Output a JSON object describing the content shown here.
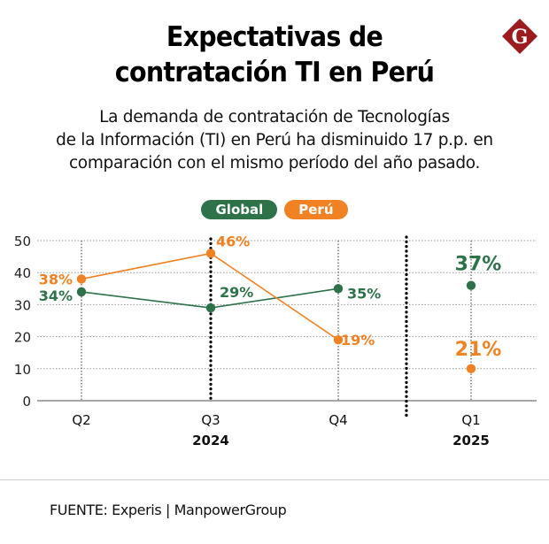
{
  "header": {
    "title_line1": "Expectativas de",
    "title_line2": "contratación TI en Perú",
    "logo_letter": "G",
    "logo_color": "#9b1b1f"
  },
  "subtitle": {
    "line1": "La demanda de contratación de Tecnologías",
    "line2": "de la Información (TI) en Perú ha disminuido 17 p.p. en",
    "line3": "comparación con el mismo período del año pasado."
  },
  "footer": {
    "source": "FUENTE: Experis | ManpowerGroup"
  },
  "chart_data": {
    "type": "line",
    "title": "Expectativas de contratación TI en Perú",
    "xlabel": "",
    "ylabel": "",
    "ylim": [
      0,
      50
    ],
    "yticks": [
      0,
      10,
      20,
      30,
      40,
      50
    ],
    "grid": true,
    "legend_position": "top-center",
    "categories": [
      "Q2",
      "Q3",
      "Q4",
      "Q1"
    ],
    "year_labels": [
      {
        "label": "2024",
        "under": "Q3"
      },
      {
        "label": "2025",
        "under": "Q1"
      }
    ],
    "year_separator_after": "Q4",
    "series": [
      {
        "name": "Global",
        "color": "#2e7249",
        "values": [
          34,
          29,
          35,
          37
        ],
        "labels": [
          "34%",
          "29%",
          "35%",
          "37%"
        ],
        "connected_to_last": false
      },
      {
        "name": "Perú",
        "color": "#f08224",
        "values": [
          38,
          46,
          19,
          21
        ],
        "labels": [
          "38%",
          "46%",
          "19%",
          "21%"
        ],
        "connected_to_last": false
      }
    ]
  }
}
